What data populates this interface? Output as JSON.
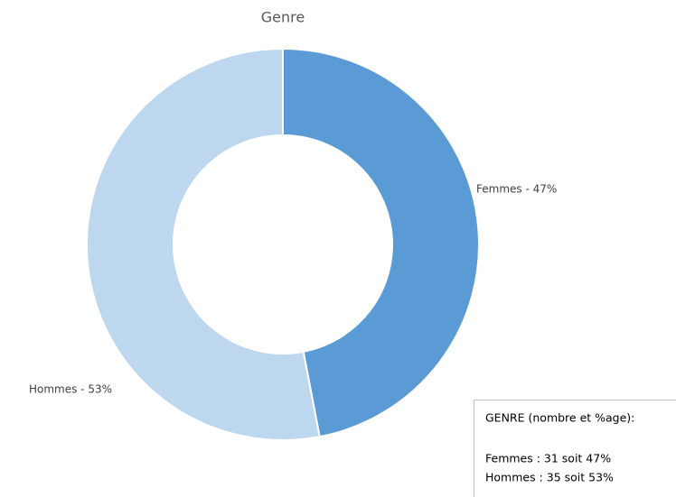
{
  "chart_data": {
    "type": "donut",
    "title": "Genre",
    "categories": [
      "Femmes",
      "Hommes"
    ],
    "values": [
      47,
      53
    ],
    "value_labels": [
      "Femmes - 47%",
      "Hommes - 53%"
    ],
    "colors": [
      "#5b9bd5",
      "#bdd7ee"
    ],
    "annotation_box": {
      "heading": "GENRE (nombre et %age):",
      "lines": [
        "Femmes : 31 soit 47%",
        "Hommes : 35 soit 53%"
      ]
    }
  }
}
